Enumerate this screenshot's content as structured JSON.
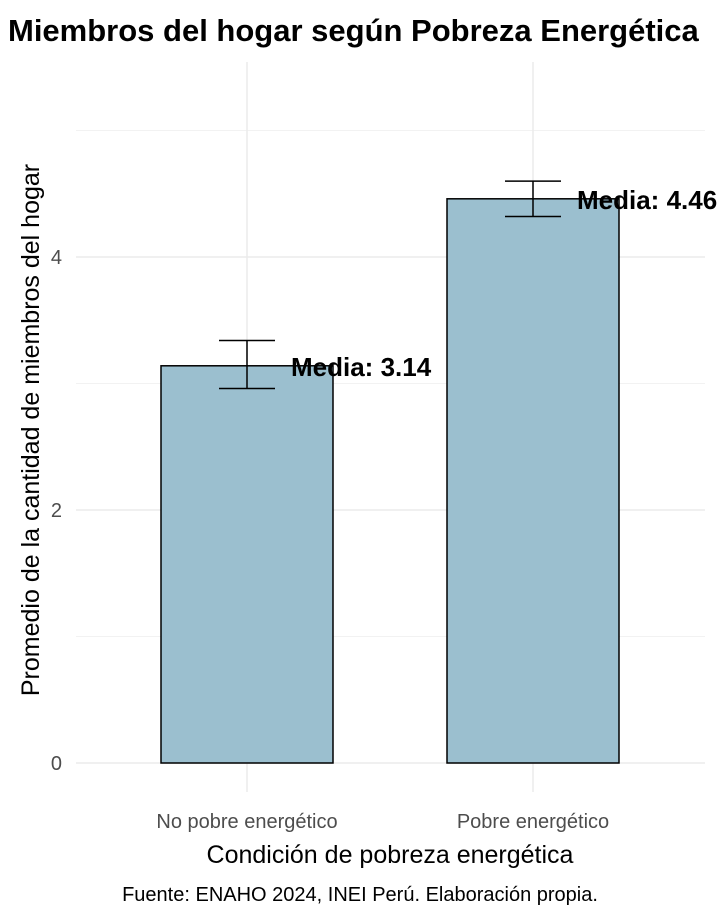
{
  "chart_data": {
    "type": "bar",
    "title": "Miembros del hogar según Pobreza Energética",
    "xlabel": "Condición de pobreza energética",
    "ylabel": "Promedio de la cantidad de miembros del hogar",
    "caption": "Fuente: ENAHO 2024, INEI Perú. Elaboración propia.",
    "categories": [
      "No pobre energético",
      "Pobre energético"
    ],
    "values": [
      3.14,
      4.46
    ],
    "error_low": [
      2.96,
      4.32
    ],
    "error_high": [
      3.34,
      4.6
    ],
    "labels": [
      "Media: 3.14",
      "Media: 4.46"
    ],
    "ylim": [
      -0.2,
      5.5
    ],
    "yticks": [
      0,
      2,
      4
    ],
    "ytick_labels": [
      "0",
      "2",
      "4"
    ],
    "bar_color": "#9bbfcf",
    "bar_edge_color": "#000000",
    "grid": true,
    "legend": "none"
  }
}
